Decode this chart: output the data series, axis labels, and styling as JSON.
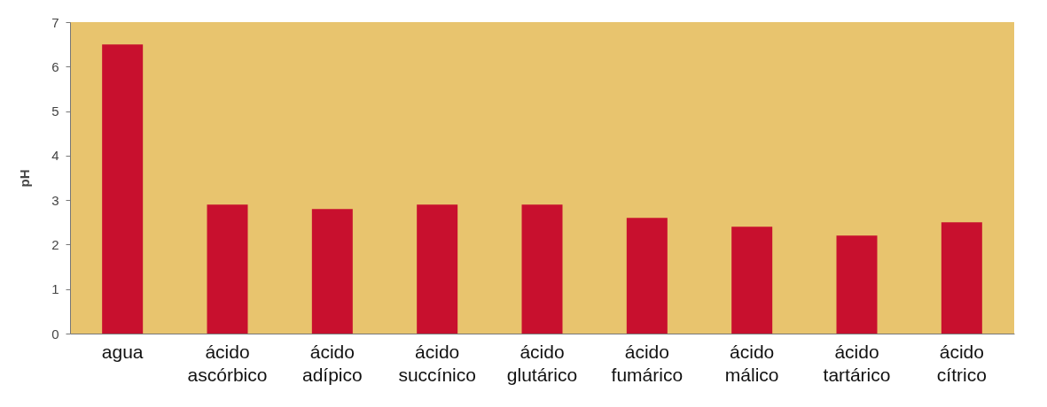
{
  "chart_data": {
    "type": "bar",
    "ylabel": "pH",
    "categories": [
      "agua",
      "ácido ascórbico",
      "ácido adípico",
      "ácido succínico",
      "ácido glutárico",
      "ácido fumárico",
      "ácido málico",
      "ácido tartárico",
      "ácido cítrico"
    ],
    "values": [
      6.5,
      2.9,
      2.8,
      2.9,
      2.9,
      2.6,
      2.4,
      2.2,
      2.5
    ],
    "color": "#c8102e",
    "ylim": [
      0,
      7
    ],
    "yticks": [
      0,
      1,
      2,
      3,
      4,
      5,
      6,
      7
    ],
    "grid": false
  }
}
